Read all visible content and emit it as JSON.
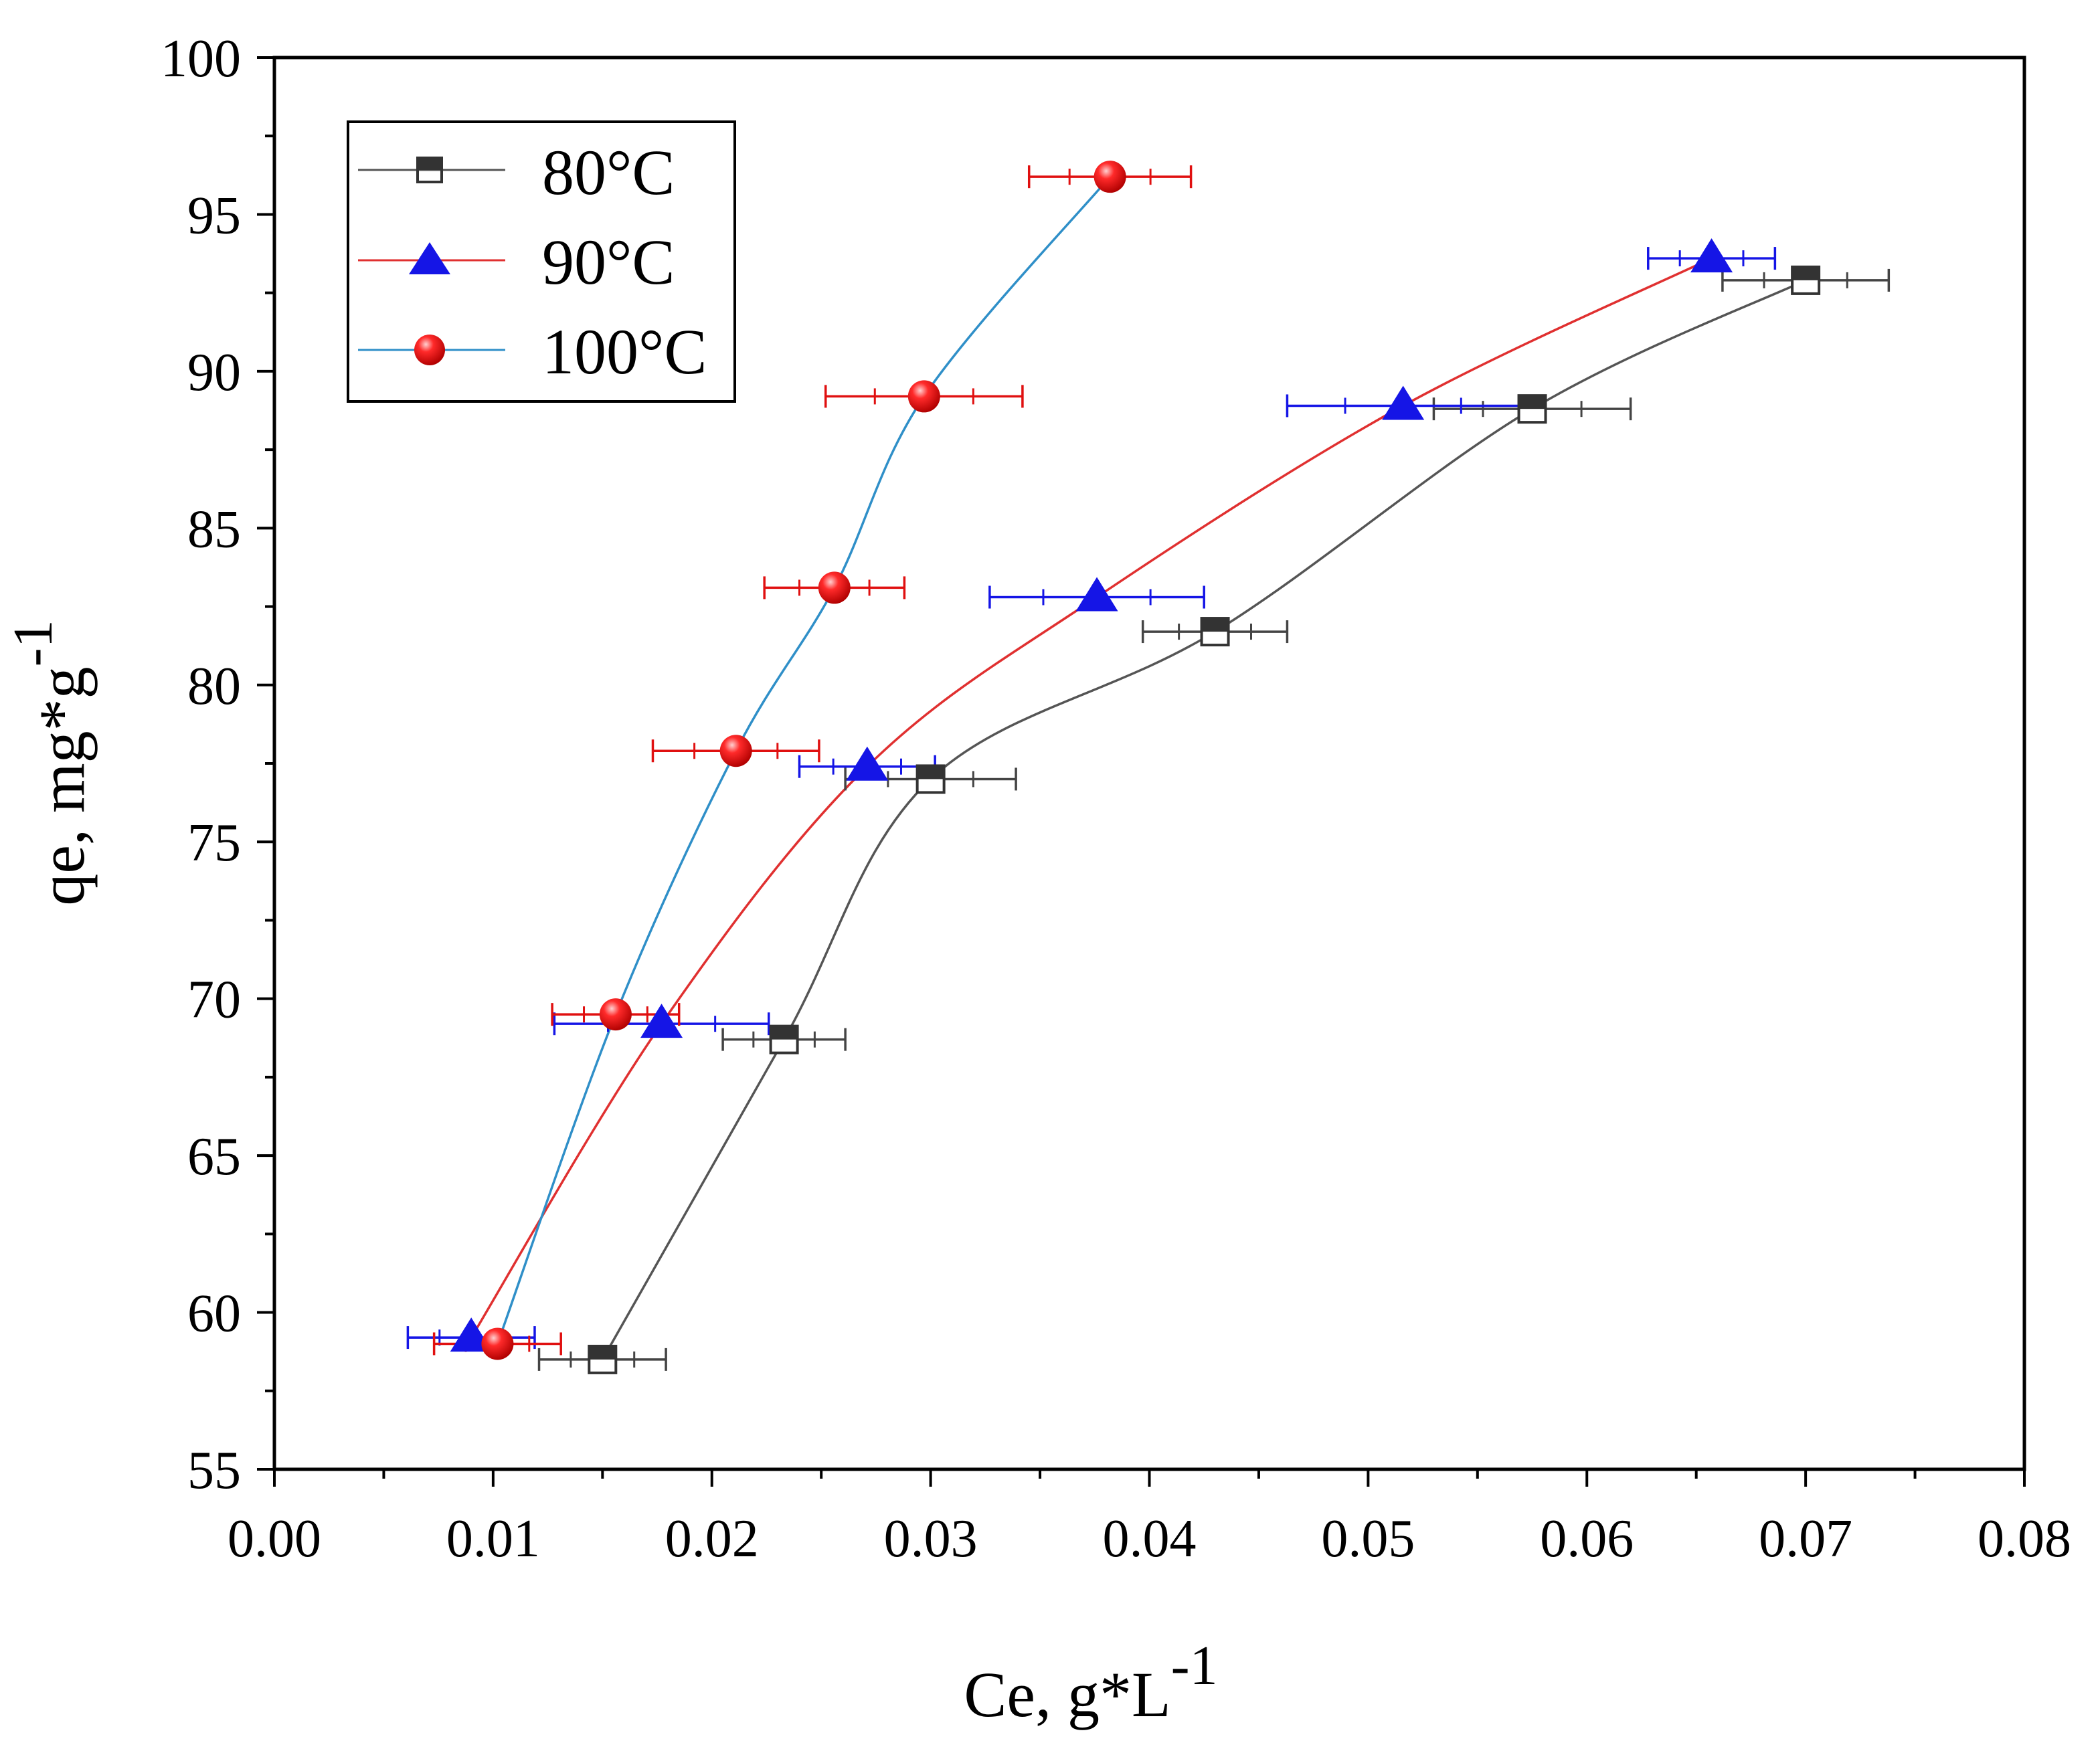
{
  "chart_data": {
    "type": "scatter",
    "xlabel": "Ce, g*L",
    "xlabel_sup": "-1",
    "ylabel": "qe, mg*g",
    "ylabel_sup": "-1",
    "xlim": [
      0,
      0.08
    ],
    "ylim": [
      55,
      100
    ],
    "xticks": [
      "0.00",
      "0.01",
      "0.02",
      "0.03",
      "0.04",
      "0.05",
      "0.06",
      "0.07",
      "0.08"
    ],
    "yticks": [
      "55",
      "60",
      "65",
      "70",
      "75",
      "80",
      "85",
      "90",
      "95",
      "100"
    ],
    "legend_position": "top-left",
    "series": [
      {
        "name": "80°C",
        "marker": "half-filled-square",
        "color": "#222222",
        "line_color": "#555555",
        "x": [
          0.015,
          0.0233,
          0.03,
          0.043,
          0.0575,
          0.07
        ],
        "y": [
          58.5,
          68.7,
          77.0,
          81.7,
          88.8,
          92.9
        ],
        "xerr": [
          0.0029,
          0.0028,
          0.0039,
          0.0033,
          0.0045,
          0.0038
        ]
      },
      {
        "name": "90°C",
        "marker": "triangle",
        "color": "#1515e6",
        "line_color": "#e03030",
        "x": [
          0.009,
          0.0177,
          0.0271,
          0.0376,
          0.0516,
          0.0657
        ],
        "y": [
          59.2,
          69.2,
          77.4,
          82.8,
          88.9,
          93.6
        ],
        "xerr": [
          0.0029,
          0.0049,
          0.0031,
          0.0049,
          0.0053,
          0.0029
        ]
      },
      {
        "name": "100°C",
        "marker": "circle",
        "color": "#e01010",
        "line_color": "#2f8fc8",
        "x": [
          0.0102,
          0.0156,
          0.0211,
          0.0256,
          0.0297,
          0.0382
        ],
        "y": [
          59.0,
          69.5,
          77.9,
          83.1,
          89.2,
          96.2
        ],
        "xerr": [
          0.0029,
          0.0029,
          0.0038,
          0.0032,
          0.0045,
          0.0037
        ]
      }
    ]
  }
}
